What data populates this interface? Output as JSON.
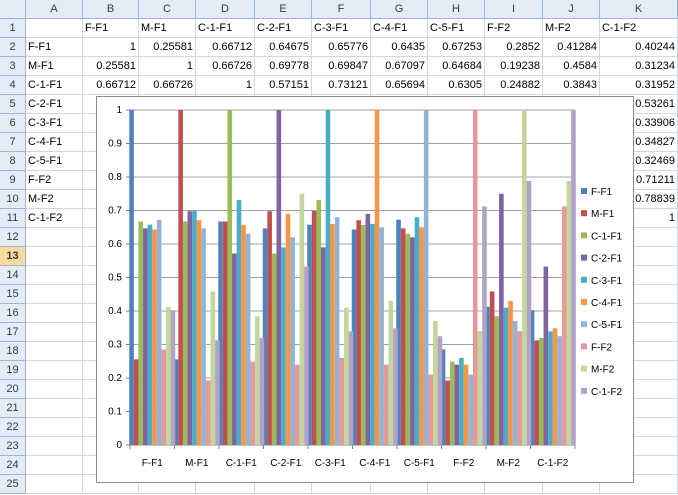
{
  "columns": [
    "A",
    "B",
    "C",
    "D",
    "E",
    "F",
    "G",
    "H",
    "I",
    "J",
    "K"
  ],
  "rows": [
    "1",
    "2",
    "3",
    "4",
    "5",
    "6",
    "7",
    "8",
    "9",
    "10",
    "11",
    "12",
    "13",
    "14",
    "15",
    "16",
    "17",
    "18",
    "19",
    "20",
    "21",
    "22",
    "23",
    "24",
    "25"
  ],
  "selected_row": "13",
  "header_row": [
    "",
    "F-F1",
    "M-F1",
    "C-1-F1",
    "C-2-F1",
    "C-3-F1",
    "C-4-F1",
    "C-5-F1",
    "F-F2",
    "M-F2",
    "C-1-F2"
  ],
  "data_rows": [
    {
      "label": "F-F1",
      "values": [
        "1",
        "0.25581",
        "0.66712",
        "0.64675",
        "0.65776",
        "0.6435",
        "0.67253",
        "0.2852",
        "0.41284",
        "0.40244"
      ]
    },
    {
      "label": "M-F1",
      "values": [
        "0.25581",
        "1",
        "0.66726",
        "0.69778",
        "0.69847",
        "0.67097",
        "0.64684",
        "0.19238",
        "0.4584",
        "0.31234"
      ]
    },
    {
      "label": "C-1-F1",
      "values": [
        "0.66712",
        "0.66726",
        "1",
        "0.57151",
        "0.73121",
        "0.65694",
        "0.6305",
        "0.24882",
        "0.3843",
        "0.31952"
      ]
    },
    {
      "label": "C-2-F1",
      "values": [
        "",
        "",
        "",
        "",
        "",
        "",
        "",
        "",
        "",
        "0.53261"
      ]
    },
    {
      "label": "C-3-F1",
      "values": [
        "",
        "",
        "",
        "",
        "",
        "",
        "",
        "",
        "",
        "0.33906"
      ]
    },
    {
      "label": "C-4-F1",
      "values": [
        "",
        "",
        "",
        "",
        "",
        "",
        "",
        "",
        "",
        "0.34827"
      ]
    },
    {
      "label": "C-5-F1",
      "values": [
        "",
        "",
        "",
        "",
        "",
        "",
        "",
        "",
        "",
        "0.32469"
      ]
    },
    {
      "label": "F-F2",
      "values": [
        "",
        "",
        "",
        "",
        "",
        "",
        "",
        "",
        "",
        "0.71211"
      ]
    },
    {
      "label": "M-F2",
      "values": [
        "",
        "",
        "",
        "",
        "",
        "",
        "",
        "",
        "",
        "0.78839"
      ]
    },
    {
      "label": "C-1-F2",
      "values": [
        "",
        "",
        "",
        "",
        "",
        "",
        "",
        "",
        "",
        "1"
      ]
    }
  ],
  "colors": {
    "series": [
      "#4f81bd",
      "#c0504d",
      "#9bbb59",
      "#8064a2",
      "#4bacc6",
      "#f79646",
      "#95b3d7",
      "#e6999a",
      "#c3d69b",
      "#b3a2c7"
    ],
    "grid": "#a0a0a0"
  },
  "chart_data": {
    "type": "bar",
    "categories": [
      "F-F1",
      "M-F1",
      "C-1-F1",
      "C-2-F1",
      "C-3-F1",
      "C-4-F1",
      "C-5-F1",
      "F-F2",
      "M-F2",
      "C-1-F2"
    ],
    "ylim": [
      0,
      1
    ],
    "yticks": [
      "0",
      "0.1",
      "0.2",
      "0.3",
      "0.4",
      "0.5",
      "0.6",
      "0.7",
      "0.8",
      "0.9",
      "1"
    ],
    "grid": true,
    "legend_position": "right",
    "series": [
      {
        "name": "F-F1",
        "values": [
          1,
          0.25581,
          0.66712,
          0.64675,
          0.65776,
          0.6435,
          0.67253,
          0.2852,
          0.41284,
          0.40244
        ]
      },
      {
        "name": "M-F1",
        "values": [
          0.25581,
          1,
          0.66726,
          0.69778,
          0.69847,
          0.67097,
          0.64684,
          0.19238,
          0.4584,
          0.31234
        ]
      },
      {
        "name": "C-1-F1",
        "values": [
          0.66712,
          0.66726,
          1,
          0.57151,
          0.73121,
          0.65694,
          0.6305,
          0.24882,
          0.3843,
          0.31952
        ]
      },
      {
        "name": "C-2-F1",
        "values": [
          0.64675,
          0.69778,
          0.57151,
          1,
          0.59,
          0.69,
          0.62,
          0.24,
          0.75,
          0.53261
        ]
      },
      {
        "name": "C-3-F1",
        "values": [
          0.65776,
          0.69847,
          0.73121,
          0.59,
          1,
          0.66,
          0.68,
          0.26,
          0.41,
          0.33906
        ]
      },
      {
        "name": "C-4-F1",
        "values": [
          0.6435,
          0.67097,
          0.65694,
          0.69,
          0.66,
          1,
          0.65,
          0.24,
          0.43,
          0.34827
        ]
      },
      {
        "name": "C-5-F1",
        "values": [
          0.67253,
          0.64684,
          0.6305,
          0.62,
          0.68,
          0.65,
          1,
          0.21,
          0.37,
          0.32469
        ]
      },
      {
        "name": "F-F2",
        "values": [
          0.2852,
          0.19238,
          0.24882,
          0.24,
          0.26,
          0.24,
          0.21,
          1,
          0.34,
          0.71211
        ]
      },
      {
        "name": "M-F2",
        "values": [
          0.41284,
          0.4584,
          0.3843,
          0.75,
          0.41,
          0.43,
          0.37,
          0.34,
          1,
          0.78839
        ]
      },
      {
        "name": "C-1-F2",
        "values": [
          0.40244,
          0.31234,
          0.31952,
          0.53261,
          0.33906,
          0.34827,
          0.32469,
          0.71211,
          0.78839,
          1
        ]
      }
    ]
  }
}
